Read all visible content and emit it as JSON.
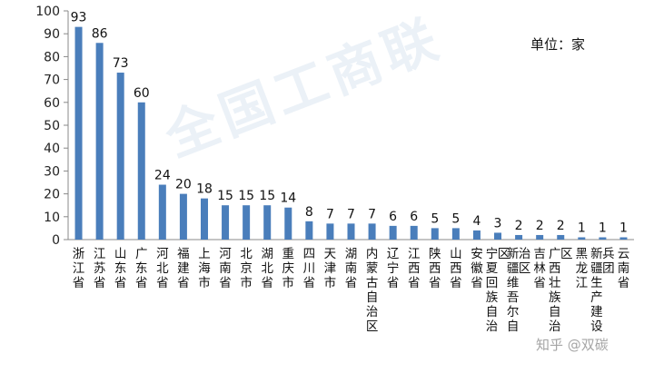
{
  "unit_label": "单位：家",
  "watermark": "全国工商联",
  "corner_watermark": "知乎 @双碳",
  "colors": {
    "bar": "#4a7ebb",
    "axis": "#888888"
  },
  "chart_data": {
    "type": "bar",
    "title": "",
    "xlabel": "",
    "ylabel": "",
    "ylim": [
      0,
      100
    ],
    "yticks": [
      0,
      10,
      20,
      30,
      40,
      50,
      60,
      70,
      80,
      90,
      100
    ],
    "grid": false,
    "categories": [
      "浙江省",
      "江苏省",
      "山东省",
      "广东省",
      "河北省",
      "福建省",
      "上海市",
      "河南省",
      "北京市",
      "湖北省",
      "重庆市",
      "四川省",
      "天津市",
      "湖南省",
      "内蒙古自治区",
      "辽宁省",
      "江西省",
      "陕西省",
      "山西省",
      "安徽省",
      "宁夏回族自治区",
      "新疆维吾尔自治区",
      "吉林省",
      "广西壮族自治区",
      "黑龙江",
      "新疆生产建设兵团",
      "云南省"
    ],
    "values": [
      93,
      86,
      73,
      60,
      24,
      20,
      18,
      15,
      15,
      15,
      14,
      8,
      7,
      7,
      7,
      6,
      6,
      5,
      5,
      4,
      3,
      2,
      2,
      2,
      1,
      1,
      1
    ]
  }
}
